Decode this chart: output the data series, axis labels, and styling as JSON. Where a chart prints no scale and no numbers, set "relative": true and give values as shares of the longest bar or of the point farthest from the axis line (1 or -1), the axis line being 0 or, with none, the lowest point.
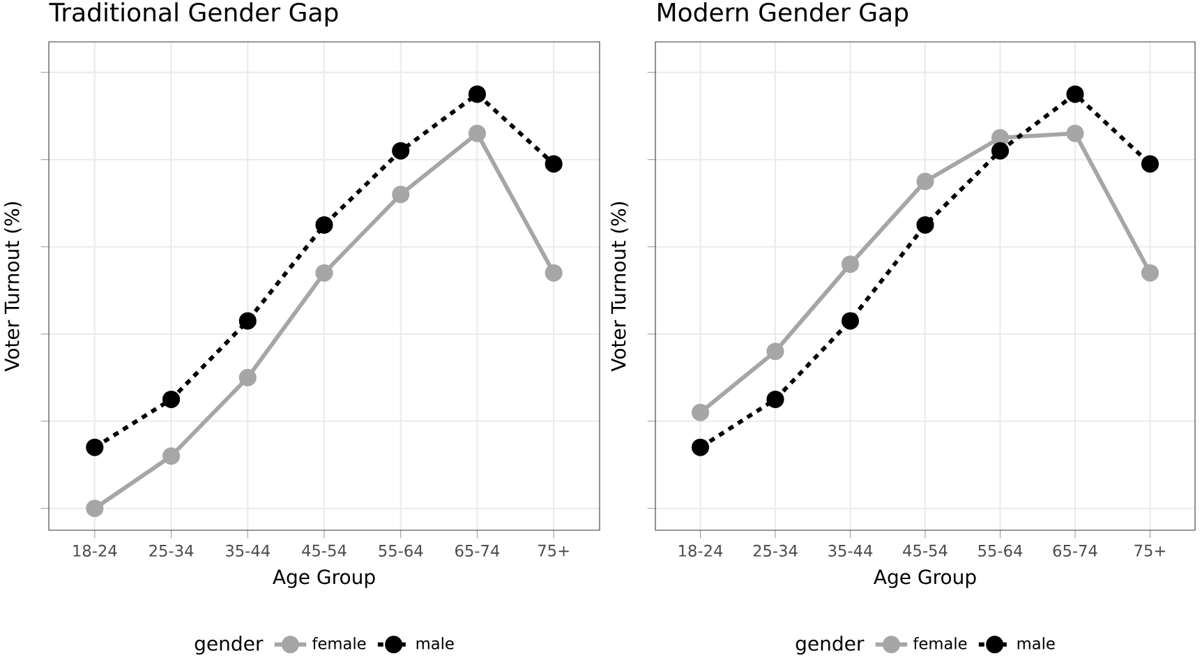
{
  "chart_data": [
    {
      "type": "line",
      "title": "Traditional Gender Gap",
      "xlabel": "Age Group",
      "ylabel": "Voter Turnout (%)",
      "legend_title": "gender",
      "legend": "bottom",
      "relative": true,
      "grid": true,
      "tick_labels": "x",
      "marker": "circle",
      "categories": [
        "18-24",
        "25-34",
        "35-44",
        "45-54",
        "55-64",
        "65-74",
        "75+"
      ],
      "series": [
        {
          "name": "female",
          "color": "#a6a6a6",
          "line_style": "solid",
          "values": [
            0.05,
            0.17,
            0.35,
            0.59,
            0.77,
            0.91,
            0.59
          ]
        },
        {
          "name": "male",
          "color": "#000000",
          "line_style": "dashed",
          "values": [
            0.19,
            0.3,
            0.48,
            0.7,
            0.87,
            1.0,
            0.84
          ]
        }
      ]
    },
    {
      "type": "line",
      "title": "Modern Gender Gap",
      "xlabel": "Age Group",
      "ylabel": "Voter Turnout (%)",
      "legend_title": "gender",
      "legend": "bottom",
      "relative": true,
      "grid": true,
      "tick_labels": "x",
      "marker": "circle",
      "categories": [
        "18-24",
        "25-34",
        "35-44",
        "45-54",
        "55-64",
        "65-74",
        "75+"
      ],
      "series": [
        {
          "name": "female",
          "color": "#a6a6a6",
          "line_style": "solid",
          "values": [
            0.27,
            0.41,
            0.61,
            0.8,
            0.9,
            0.91,
            0.59
          ]
        },
        {
          "name": "male",
          "color": "#000000",
          "line_style": "dashed",
          "values": [
            0.19,
            0.3,
            0.48,
            0.7,
            0.87,
            1.0,
            0.84
          ]
        }
      ]
    }
  ]
}
